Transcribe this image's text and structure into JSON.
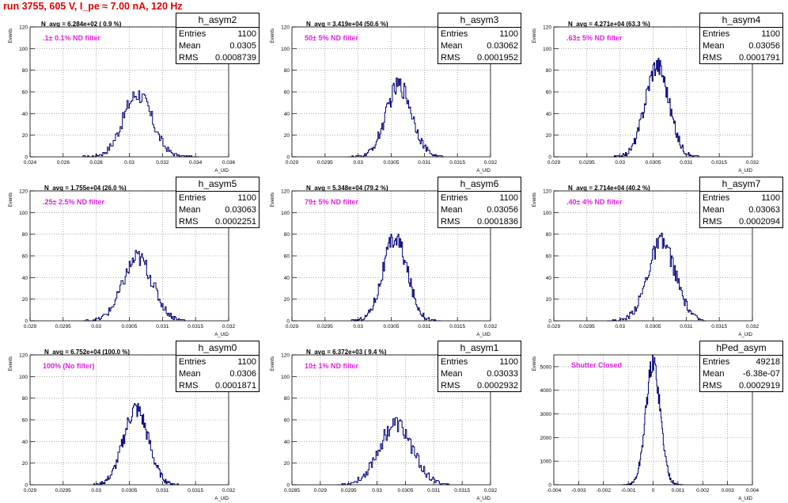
{
  "page_title": "run 3755,   605 V, I_pe ≈ 7.00 nA, 120 Hz",
  "stat_labels": {
    "entries": "Entries",
    "mean": "Mean",
    "rms": "RMS"
  },
  "chart_data": [
    {
      "type": "histogram",
      "title": "h_asym2",
      "stats": {
        "entries": "1100",
        "mean": "0.0305",
        "rms": "0.0008739"
      },
      "n_avg": "N_avg = 6.284e+02 ( 0.9 %)",
      "filter_label": ".1± 0.1% ND filter",
      "xlabel": "A_UID",
      "ylabel": "Events",
      "xlim": [
        0.024,
        0.036
      ],
      "ylim": [
        0,
        120
      ],
      "xticks": [
        "0.024",
        "0.026",
        "0.028",
        "0.03",
        "0.032",
        "0.034",
        "0.036"
      ],
      "yticks": [
        "0",
        "20",
        "40",
        "60",
        "80",
        "100",
        "120"
      ],
      "mean": 0.0305,
      "sigma": 0.00087,
      "peak": 58,
      "xmin": 0.0272,
      "xmax": 0.0342,
      "bins": 100
    },
    {
      "type": "histogram",
      "title": "h_asym3",
      "stats": {
        "entries": "1100",
        "mean": "0.03062",
        "rms": "0.0001952"
      },
      "n_avg": "N_avg = 3.419e+04 (50.6 %)",
      "filter_label": "50± 5% ND filter",
      "xlabel": "A_UID",
      "ylabel": "Events",
      "xlim": [
        0.029,
        0.032
      ],
      "ylim": [
        0,
        120
      ],
      "xticks": [
        "0.029",
        "0.0295",
        "0.03",
        "0.0305",
        "0.031",
        "0.0315",
        "0.032"
      ],
      "yticks": [
        "0",
        "20",
        "40",
        "60",
        "80",
        "100",
        "120"
      ],
      "mean": 0.03062,
      "sigma": 0.000195,
      "peak": 66,
      "xmin": 0.02985,
      "xmax": 0.0313,
      "bins": 100
    },
    {
      "type": "histogram",
      "title": "h_asym4",
      "stats": {
        "entries": "1100",
        "mean": "0.03056",
        "rms": "0.0001791"
      },
      "n_avg": "N_avg = 4.271e+04 (63.3 %)",
      "filter_label": ".63± 5% ND filter",
      "xlabel": "A_UID",
      "ylabel": "Events",
      "xlim": [
        0.029,
        0.032
      ],
      "ylim": [
        0,
        120
      ],
      "xticks": [
        "0.029",
        "0.0295",
        "0.03",
        "0.0305",
        "0.031",
        "0.0315",
        "0.032"
      ],
      "yticks": [
        "0",
        "20",
        "40",
        "60",
        "80",
        "100",
        "120"
      ],
      "mean": 0.03056,
      "sigma": 0.000179,
      "peak": 85,
      "xmin": 0.0299,
      "xmax": 0.0312,
      "bins": 100
    },
    {
      "type": "histogram",
      "title": "h_asym5",
      "stats": {
        "entries": "1100",
        "mean": "0.03063",
        "rms": "0.0002251"
      },
      "n_avg": "N_avg = 1.755e+04 (26.0 %)",
      "filter_label": ".25± 2.5% ND filter",
      "xlabel": "A_UID",
      "ylabel": "Events",
      "xlim": [
        0.029,
        0.032
      ],
      "ylim": [
        0,
        120
      ],
      "xticks": [
        "0.029",
        "0.0295",
        "0.03",
        "0.0305",
        "0.031",
        "0.0315",
        "0.032"
      ],
      "yticks": [
        "0",
        "20",
        "40",
        "60",
        "80",
        "100",
        "120"
      ],
      "mean": 0.03063,
      "sigma": 0.000225,
      "peak": 58,
      "xmin": 0.0298,
      "xmax": 0.03135,
      "bins": 100
    },
    {
      "type": "histogram",
      "title": "h_asym6",
      "stats": {
        "entries": "1100",
        "mean": "0.03056",
        "rms": "0.0001836"
      },
      "n_avg": "N_avg = 5.348e+04 (79.2 %)",
      "filter_label": "79± 5% ND filter",
      "xlabel": "A_UID",
      "ylabel": "Events",
      "xlim": [
        0.029,
        0.032
      ],
      "ylim": [
        0,
        120
      ],
      "xticks": [
        "0.029",
        "0.0295",
        "0.03",
        "0.0305",
        "0.031",
        "0.0315",
        "0.032"
      ],
      "yticks": [
        "0",
        "20",
        "40",
        "60",
        "80",
        "100",
        "120"
      ],
      "mean": 0.03056,
      "sigma": 0.000184,
      "peak": 76,
      "xmin": 0.0299,
      "xmax": 0.03125,
      "bins": 100
    },
    {
      "type": "histogram",
      "title": "h_asym7",
      "stats": {
        "entries": "1100",
        "mean": "0.03063",
        "rms": "0.0002094"
      },
      "n_avg": "N_avg = 2.714e+04 (40.2 %)",
      "filter_label": ".40± 4% ND filter",
      "xlabel": "A_UID",
      "ylabel": "Events",
      "xlim": [
        0.029,
        0.032
      ],
      "ylim": [
        0,
        120
      ],
      "xticks": [
        "0.029",
        "0.0295",
        "0.03",
        "0.0305",
        "0.031",
        "0.0315",
        "0.032"
      ],
      "yticks": [
        "0",
        "20",
        "40",
        "60",
        "80",
        "100",
        "120"
      ],
      "mean": 0.03063,
      "sigma": 0.000209,
      "peak": 72,
      "xmin": 0.0298,
      "xmax": 0.0313,
      "bins": 100
    },
    {
      "type": "histogram",
      "title": "h_asym0",
      "stats": {
        "entries": "1100",
        "mean": "0.0306",
        "rms": "0.0001871"
      },
      "n_avg": "N_avg = 6.752e+04 (100.0 %)",
      "filter_label": "100% (No filter)",
      "xlabel": "A_UID",
      "ylabel": "Events",
      "xlim": [
        0.029,
        0.032
      ],
      "ylim": [
        0,
        120
      ],
      "xticks": [
        "0.029",
        "0.0295",
        "0.03",
        "0.0305",
        "0.031",
        "0.0315",
        "0.032"
      ],
      "yticks": [
        "0",
        "20",
        "40",
        "60",
        "80",
        "100",
        "120"
      ],
      "mean": 0.0306,
      "sigma": 0.000187,
      "peak": 70,
      "xmin": 0.02995,
      "xmax": 0.03125,
      "bins": 100
    },
    {
      "type": "histogram",
      "title": "h_asym1",
      "stats": {
        "entries": "1100",
        "mean": "0.03033",
        "rms": "0.0002932"
      },
      "n_avg": "N_avg = 6.372e+03 ( 9.4 %)",
      "filter_label": "10± 1% ND filter",
      "xlabel": "A_UID",
      "ylabel": "Events",
      "xlim": [
        0.0285,
        0.032
      ],
      "ylim": [
        0,
        120
      ],
      "xticks": [
        "0.0285",
        "0.029",
        "0.0295",
        "0.03",
        "0.0305",
        "0.031",
        "0.0315",
        "0.032"
      ],
      "yticks": [
        "0",
        "20",
        "40",
        "60",
        "80",
        "100",
        "120"
      ],
      "mean": 0.03033,
      "sigma": 0.000293,
      "peak": 56,
      "xmin": 0.0293,
      "xmax": 0.0313,
      "bins": 100
    },
    {
      "type": "histogram",
      "title": "hPed_asym",
      "stats": {
        "entries": "49218",
        "mean": "-6.38e-07",
        "rms": "0.0002919"
      },
      "n_avg": "",
      "filter_label": "Shutter Closed",
      "xlabel": "A_UID",
      "ylabel": "Events",
      "xlim": [
        -0.004,
        0.004
      ],
      "ylim": [
        0,
        5500
      ],
      "xticks": [
        "-0.004",
        "-0.003",
        "-0.002",
        "-0.001",
        "0",
        "0.001",
        "0.002",
        "0.003",
        "0.004"
      ],
      "yticks": [
        "0",
        "1000",
        "2000",
        "3000",
        "4000",
        "5000"
      ],
      "mean": 0,
      "sigma": 0.000292,
      "peak": 5150,
      "xmin": -0.0012,
      "xmax": 0.0012,
      "bins": 100
    }
  ]
}
